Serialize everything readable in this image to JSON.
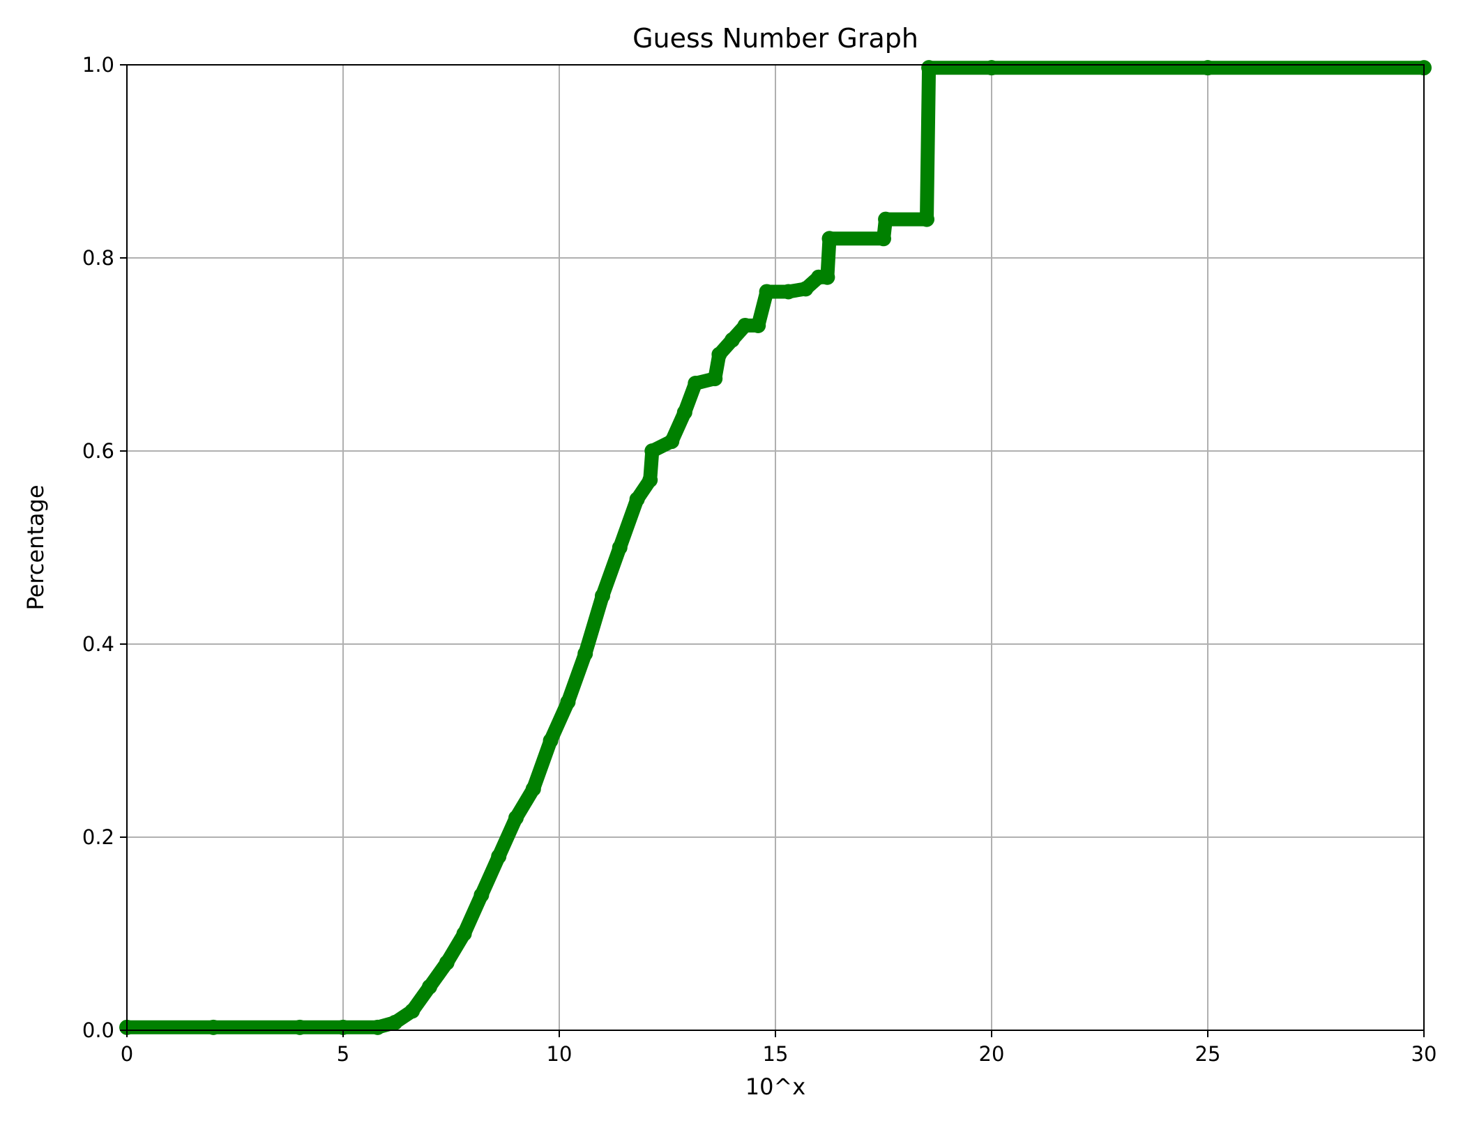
{
  "chart_data": {
    "type": "line",
    "title": "Guess Number Graph",
    "xlabel": "10^x",
    "ylabel": "Percentage",
    "xlim": [
      0,
      30
    ],
    "ylim": [
      0,
      1.0
    ],
    "xticks": [
      "0",
      "5",
      "10",
      "15",
      "20",
      "25",
      "30"
    ],
    "yticks": [
      "0.0",
      "0.2",
      "0.4",
      "0.6",
      "0.8",
      "1.0"
    ],
    "grid": true,
    "line_color": "#008000",
    "grid_color": "#b0b0b0",
    "series": [
      {
        "x": [
          0,
          2,
          4,
          5,
          5.8,
          6.2,
          6.6,
          7.0,
          7.4,
          7.8,
          8.2,
          8.6,
          9.0,
          9.4,
          9.8,
          10.2,
          10.6,
          11.0,
          11.4,
          11.8,
          12.1,
          12.15,
          12.6,
          12.9,
          13.15,
          13.6,
          13.7,
          14.0,
          14.3,
          14.6,
          14.8,
          15.3,
          15.7,
          16.0,
          16.2,
          16.25,
          17.5,
          17.55,
          18.5,
          18.55,
          20,
          25,
          30
        ],
        "y": [
          0.003,
          0.003,
          0.003,
          0.003,
          0.003,
          0.008,
          0.02,
          0.045,
          0.07,
          0.1,
          0.14,
          0.18,
          0.22,
          0.25,
          0.3,
          0.34,
          0.39,
          0.45,
          0.5,
          0.55,
          0.57,
          0.6,
          0.61,
          0.64,
          0.67,
          0.675,
          0.7,
          0.715,
          0.73,
          0.73,
          0.765,
          0.765,
          0.768,
          0.78,
          0.78,
          0.82,
          0.82,
          0.84,
          0.84,
          0.997,
          0.997,
          0.997,
          0.997
        ]
      }
    ]
  }
}
